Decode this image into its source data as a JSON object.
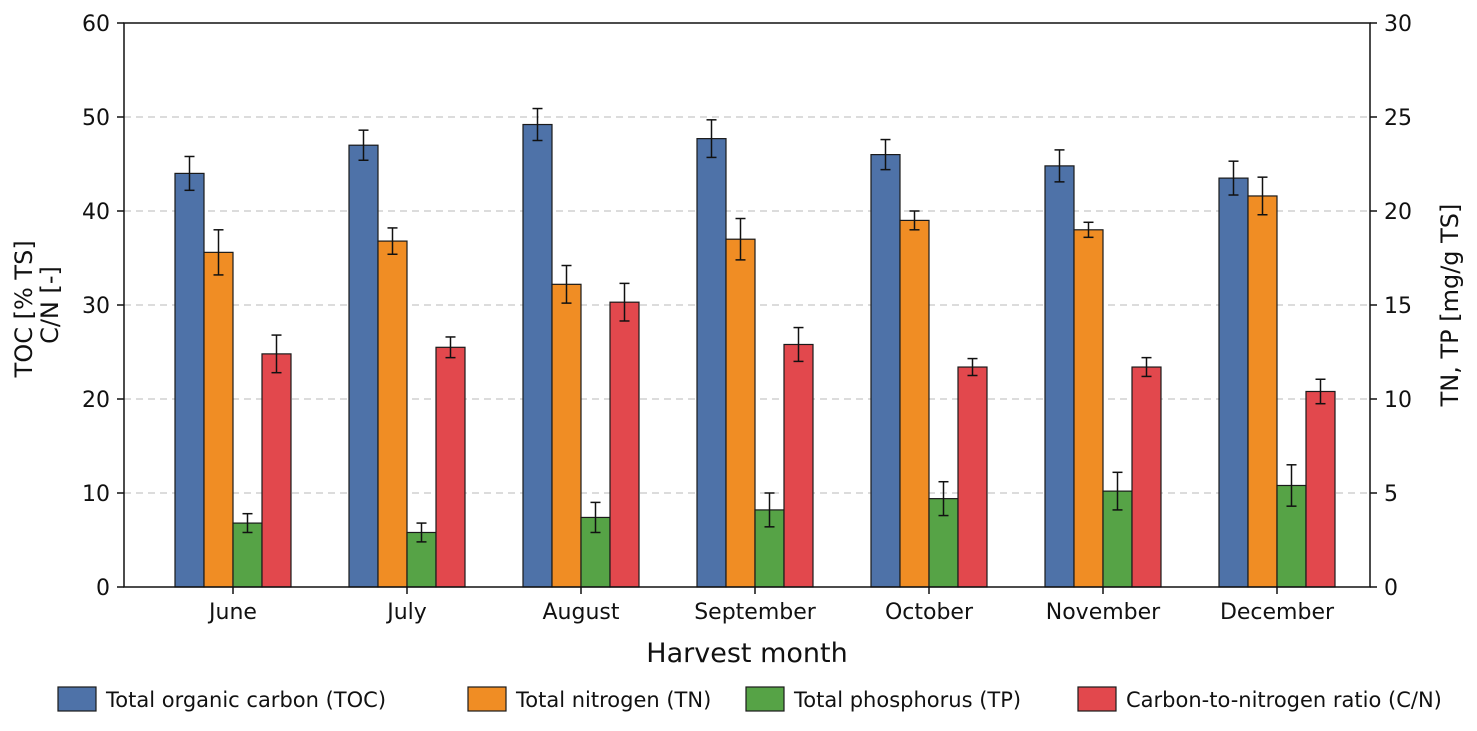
{
  "chart_data": {
    "type": "bar",
    "categories": [
      "June",
      "July",
      "August",
      "September",
      "October",
      "November",
      "December"
    ],
    "xlabel": "Harvest month",
    "ylabel_left_line1": "TOC [% TS]",
    "ylabel_left_line2": "C/N [-]",
    "ylabel_right": "TN, TP [mg/g TS]",
    "ylim_left": [
      0,
      60
    ],
    "ylim_right": [
      0,
      30
    ],
    "yticks_left": [
      0,
      10,
      20,
      30,
      40,
      50,
      60
    ],
    "yticks_right": [
      0,
      5,
      10,
      15,
      20,
      25,
      30
    ],
    "grid": "horizontal-dashed",
    "legend_position": "bottom",
    "series": [
      {
        "name": "Total organic carbon (TOC)",
        "axis": "left",
        "color": "#4e72a8",
        "values": [
          44.0,
          47.0,
          49.2,
          47.7,
          46.0,
          44.8,
          43.5
        ],
        "errors": [
          1.8,
          1.6,
          1.7,
          2.0,
          1.6,
          1.7,
          1.8
        ]
      },
      {
        "name": "Total nitrogen (TN)",
        "axis": "right",
        "color": "#f08d24",
        "values": [
          17.8,
          18.4,
          16.1,
          18.5,
          19.5,
          19.0,
          20.8
        ],
        "errors": [
          1.2,
          0.7,
          1.0,
          1.1,
          0.5,
          0.4,
          1.0
        ]
      },
      {
        "name": "Total phosphorus (TP)",
        "axis": "right",
        "color": "#56a346",
        "values": [
          3.4,
          2.9,
          3.7,
          4.1,
          4.7,
          5.1,
          5.4
        ],
        "errors": [
          0.5,
          0.5,
          0.8,
          0.9,
          0.9,
          1.0,
          1.1
        ]
      },
      {
        "name": "Carbon-to-nitrogen ratio (C/N)",
        "axis": "left",
        "color": "#e2484d",
        "values": [
          24.8,
          25.5,
          30.3,
          25.8,
          23.4,
          23.4,
          20.8
        ],
        "errors": [
          2.0,
          1.1,
          2.0,
          1.8,
          0.9,
          1.0,
          1.3
        ]
      }
    ]
  }
}
